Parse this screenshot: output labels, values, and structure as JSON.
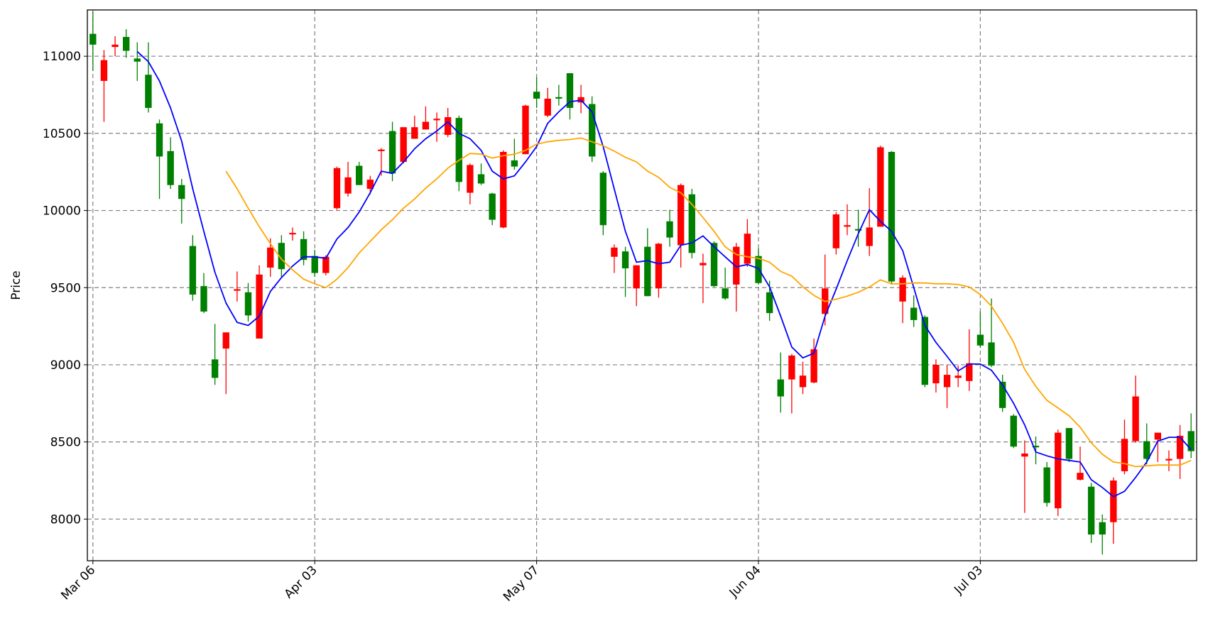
{
  "chart_data": {
    "type": "candlestick",
    "ylabel": "Price",
    "categories": [
      "Mar 06",
      null,
      null,
      null,
      null,
      null,
      null,
      null,
      null,
      null,
      null,
      null,
      null,
      null,
      null,
      null,
      null,
      null,
      null,
      null,
      "Apr 03",
      null,
      null,
      null,
      null,
      null,
      null,
      null,
      null,
      null,
      null,
      null,
      null,
      null,
      null,
      null,
      null,
      null,
      null,
      null,
      "May 07",
      null,
      null,
      null,
      null,
      null,
      null,
      null,
      null,
      null,
      null,
      null,
      null,
      null,
      null,
      null,
      null,
      null,
      null,
      null,
      "Jun 04",
      null,
      null,
      null,
      null,
      null,
      null,
      null,
      null,
      null,
      null,
      null,
      null,
      null,
      null,
      null,
      null,
      null,
      null,
      null,
      "Jul 03",
      null,
      null,
      null,
      null,
      null,
      null,
      null,
      null,
      null,
      null,
      null,
      null,
      null,
      null,
      null,
      null,
      null,
      null,
      null
    ],
    "open": [
      11145,
      10840,
      11060,
      11125,
      10985,
      10880,
      10565,
      10385,
      10165,
      9770,
      9510,
      9035,
      9105,
      9480,
      9470,
      9170,
      9630,
      9790,
      9845,
      9815,
      9705,
      9595,
      10015,
      10110,
      10290,
      10140,
      10385,
      10515,
      10315,
      10465,
      10525,
      10585,
      10490,
      10600,
      10115,
      10235,
      10110,
      9890,
      10325,
      10365,
      10770,
      10615,
      10735,
      10890,
      10700,
      10690,
      10245,
      9700,
      9735,
      9495,
      9765,
      9495,
      9930,
      9775,
      10105,
      9645,
      9790,
      9495,
      9520,
      9655,
      9705,
      9470,
      8905,
      8905,
      8855,
      8885,
      9330,
      9755,
      9895,
      9880,
      9770,
      9895,
      10380,
      9410,
      9370,
      9310,
      8880,
      8855,
      8915,
      8895,
      9195,
      9145,
      8890,
      8670,
      8405,
      8475,
      8335,
      8070,
      8590,
      8255,
      8210,
      7980,
      7980,
      8310,
      8505,
      8505,
      8515,
      8380,
      8390,
      8570
    ],
    "high": [
      11290,
      11040,
      11130,
      11175,
      11090,
      11090,
      10590,
      10475,
      10205,
      9840,
      9595,
      9265,
      9210,
      9605,
      9530,
      9645,
      9820,
      9840,
      9890,
      9865,
      9745,
      9710,
      10285,
      10315,
      10315,
      10225,
      10405,
      10575,
      10540,
      10615,
      10675,
      10635,
      10665,
      10615,
      10305,
      10305,
      10115,
      10390,
      10465,
      10685,
      10865,
      10795,
      10815,
      10890,
      10815,
      10740,
      10255,
      9780,
      9765,
      9645,
      9885,
      9790,
      10005,
      10175,
      10140,
      9720,
      9800,
      9630,
      9790,
      9945,
      9755,
      9545,
      9080,
      9070,
      9020,
      9170,
      9715,
      9990,
      10040,
      10005,
      10145,
      10420,
      10385,
      9580,
      9450,
      9320,
      9035,
      9000,
      8995,
      9230,
      9345,
      9430,
      8935,
      8680,
      8510,
      8535,
      8370,
      8580,
      8590,
      8470,
      8235,
      8030,
      8270,
      8645,
      8930,
      8620,
      8560,
      8445,
      8610,
      8685
    ],
    "low": [
      10905,
      10575,
      11000,
      10990,
      10840,
      10635,
      10075,
      10140,
      9915,
      9415,
      9335,
      8870,
      8810,
      9410,
      9280,
      9170,
      9570,
      9570,
      9805,
      9645,
      9570,
      9580,
      10005,
      10090,
      10165,
      10105,
      10225,
      10190,
      10305,
      10465,
      10525,
      10445,
      10475,
      10125,
      10040,
      10165,
      9905,
      9885,
      10265,
      10365,
      10665,
      10605,
      10680,
      10590,
      10630,
      10315,
      9840,
      9595,
      9440,
      9380,
      9445,
      9435,
      9765,
      9630,
      9690,
      9400,
      9505,
      9420,
      9345,
      9635,
      9520,
      9285,
      8690,
      8685,
      8810,
      8880,
      9255,
      9715,
      9840,
      9765,
      9705,
      9895,
      9520,
      9270,
      9245,
      8855,
      8820,
      8720,
      8855,
      8830,
      9110,
      8985,
      8695,
      8460,
      8040,
      8355,
      8080,
      8020,
      8370,
      8250,
      7845,
      7770,
      7840,
      8290,
      8495,
      8355,
      8370,
      8310,
      8260,
      8395
    ],
    "close": [
      11075,
      10975,
      11075,
      11035,
      10965,
      10665,
      10350,
      10165,
      10075,
      9455,
      9345,
      8915,
      9210,
      9490,
      9320,
      9585,
      9760,
      9620,
      9855,
      9680,
      9595,
      9700,
      10275,
      10215,
      10165,
      10200,
      10395,
      10240,
      10540,
      10540,
      10575,
      10595,
      10605,
      10185,
      10295,
      10175,
      9940,
      10380,
      10285,
      10680,
      10725,
      10725,
      10725,
      10665,
      10735,
      10350,
      9905,
      9760,
      9625,
      9645,
      9445,
      9785,
      9825,
      10165,
      9725,
      9660,
      9510,
      9430,
      9765,
      9850,
      9530,
      9335,
      8795,
      9060,
      8930,
      9100,
      9495,
      9975,
      9905,
      9870,
      9890,
      10410,
      9540,
      9565,
      9290,
      8870,
      9000,
      8935,
      8930,
      9010,
      9125,
      8995,
      8720,
      8470,
      8425,
      8465,
      8105,
      8560,
      8390,
      8300,
      7900,
      7900,
      8250,
      8520,
      8795,
      8390,
      8560,
      8390,
      8540,
      8440
    ],
    "up_color": "#ff0000",
    "down_color": "#008000",
    "series": [
      {
        "color": "#0000ff",
        "values": [
          null,
          null,
          null,
          null,
          11030,
          10965,
          10840,
          10665,
          10450,
          10140,
          9865,
          9600,
          9400,
          9275,
          9255,
          9315,
          9475,
          9565,
          9640,
          9700,
          9700,
          9690,
          9815,
          9890,
          9990,
          10115,
          10255,
          10240,
          10315,
          10400,
          10465,
          10515,
          10575,
          10500,
          10465,
          10390,
          10255,
          10205,
          10225,
          10315,
          10415,
          10565,
          10640,
          10705,
          10715,
          10640,
          10415,
          10140,
          9865,
          9665,
          9675,
          9655,
          9665,
          9775,
          9790,
          9835,
          9765,
          9700,
          9635,
          9650,
          9625,
          9505,
          9315,
          9115,
          9045,
          9075,
          9315,
          9490,
          9675,
          9850,
          10005,
          9930,
          9865,
          9740,
          9500,
          9255,
          9145,
          9055,
          8960,
          9005,
          9005,
          8965,
          8870,
          8750,
          8610,
          8435,
          8410,
          8390,
          8380,
          8370,
          8255,
          8205,
          8145,
          8180,
          8270,
          8370,
          8505,
          8530,
          8530,
          8450
        ]
      },
      {
        "color": "#ffa500",
        "values": [
          null,
          null,
          null,
          null,
          null,
          null,
          null,
          null,
          null,
          null,
          null,
          null,
          10255,
          10140,
          10015,
          9895,
          9785,
          9685,
          9615,
          9555,
          9525,
          9500,
          9555,
          9630,
          9725,
          9800,
          9875,
          9940,
          10015,
          10075,
          10145,
          10205,
          10275,
          10325,
          10370,
          10365,
          10340,
          10355,
          10365,
          10390,
          10430,
          10445,
          10455,
          10460,
          10470,
          10445,
          10420,
          10385,
          10345,
          10315,
          10255,
          10215,
          10150,
          10115,
          10040,
          9955,
          9865,
          9765,
          9715,
          9700,
          9690,
          9665,
          9605,
          9575,
          9505,
          9450,
          9410,
          9425,
          9445,
          9470,
          9505,
          9550,
          9525,
          9525,
          9530,
          9530,
          9525,
          9525,
          9520,
          9505,
          9455,
          9380,
          9270,
          9145,
          8970,
          8860,
          8770,
          8720,
          8670,
          8595,
          8495,
          8420,
          8370,
          8360,
          8340,
          8345,
          8350,
          8350,
          8350,
          8380
        ]
      }
    ],
    "xlim": [
      -0.5,
      99.5
    ],
    "ylim": [
      7730,
      11300
    ],
    "yticks": [
      8000,
      8500,
      9000,
      9500,
      10000,
      10500,
      11000
    ],
    "grid": true
  }
}
